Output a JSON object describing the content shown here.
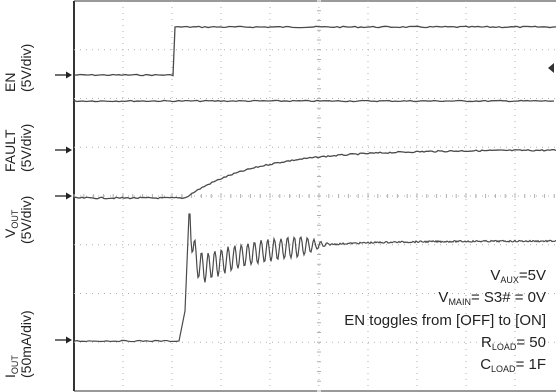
{
  "chart_data": {
    "type": "line",
    "title": "",
    "grid": true,
    "x_divisions": 10,
    "y_divisions": 8,
    "channels": [
      {
        "name": "EN",
        "scale": "(5V/div)",
        "level_div": 6.3,
        "description": "low until trigger, steps high"
      },
      {
        "name": "FAULT",
        "scale": "(5V/div)",
        "level_div": 5.4,
        "description": "flat"
      },
      {
        "name": "V_OUT",
        "scale": "(5V/div)",
        "level_div": 3.45,
        "description": "exponential rise after EN"
      },
      {
        "name": "I_OUT",
        "scale": "(50mA/div)",
        "level_div": 0.45,
        "description": "inrush spike then ringing decay"
      }
    ]
  },
  "labels": {
    "en": {
      "main": "EN",
      "scale": "(5V/div)"
    },
    "fault": {
      "main": "FAULT",
      "scale": "(5V/div)"
    },
    "vout": {
      "main": "V",
      "sub": "OUT",
      "scale": "(5V/div)"
    },
    "iout": {
      "main": "I",
      "sub": "OUT",
      "scale": "(50mA/div)"
    }
  },
  "annotations": {
    "vaux_main": "V",
    "vaux_sub": "AUX",
    "vaux_val": "=5V",
    "vmain_main": "V",
    "vmain_sub": "MAIN",
    "vmain_val": "= S3# = 0V",
    "en_toggle": "EN toggles from [OFF] to [ON]",
    "rload_main": "R",
    "rload_sub": "LOAD",
    "rload_val": "= 50",
    "cload_main": "C",
    "cload_sub": "LOAD",
    "cload_val": "= 1F"
  },
  "colors": {
    "trace": "#4a4a4a",
    "grid": "#b0b0b0",
    "frame": "#333333"
  }
}
